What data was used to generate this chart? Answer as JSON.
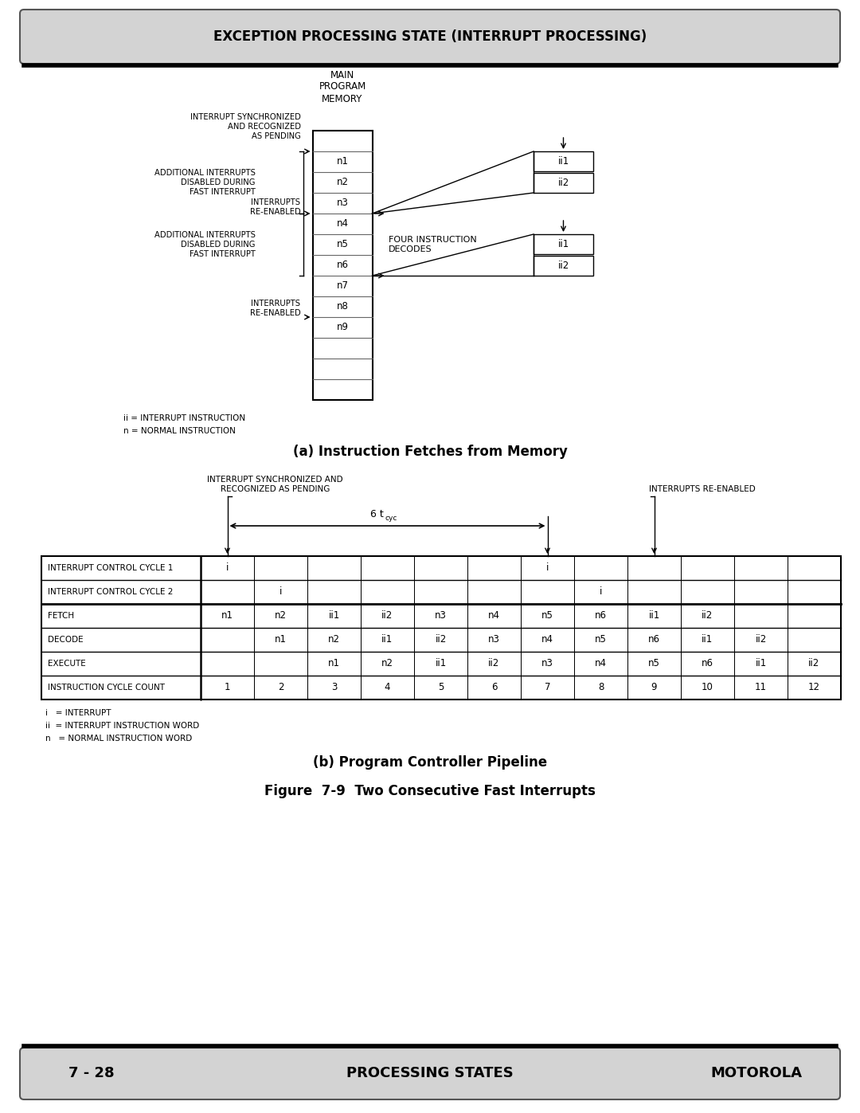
{
  "title_header": "EXCEPTION PROCESSING STATE (INTERRUPT PROCESSING)",
  "footer_left": "7 - 28",
  "footer_center": "PROCESSING STATES",
  "footer_right": "MOTOROLA",
  "section_a_title": "(a) Instruction Fetches from Memory",
  "section_b_title": "(b) Program Controller Pipeline",
  "figure_caption": "Figure  7-9  Two Consecutive Fast Interrupts",
  "memory_label": "MAIN\nPROGRAM\nMEMORY",
  "memory_rows": [
    "",
    "n1",
    "n2",
    "n3",
    "n4",
    "n5",
    "n6",
    "n7",
    "n8",
    "n9",
    "",
    "",
    ""
  ],
  "legend_a_line1": "ii = INTERRUPT INSTRUCTION",
  "legend_a_line2": "n = NORMAL INSTRUCTION",
  "four_instruction_label": "FOUR INSTRUCTION\nDECODES",
  "pipeline_rows": [
    {
      "label": "INTERRUPT CONTROL CYCLE 1",
      "cells": [
        "i",
        "",
        "",
        "",
        "",
        "",
        "i",
        "",
        "",
        "",
        "",
        ""
      ]
    },
    {
      "label": "INTERRUPT CONTROL CYCLE 2",
      "cells": [
        "",
        "i",
        "",
        "",
        "",
        "",
        "",
        "i",
        "",
        "",
        "",
        ""
      ]
    },
    {
      "label": "FETCH",
      "cells": [
        "n1",
        "n2",
        "ii1",
        "ii2",
        "n3",
        "n4",
        "n5",
        "n6",
        "ii1",
        "ii2",
        "",
        ""
      ]
    },
    {
      "label": "DECODE",
      "cells": [
        "",
        "n1",
        "n2",
        "ii1",
        "ii2",
        "n3",
        "n4",
        "n5",
        "n6",
        "ii1",
        "ii2",
        ""
      ]
    },
    {
      "label": "EXECUTE",
      "cells": [
        "",
        "",
        "n1",
        "n2",
        "ii1",
        "ii2",
        "n3",
        "n4",
        "n5",
        "n6",
        "ii1",
        "ii2"
      ]
    },
    {
      "label": "INSTRUCTION CYCLE COUNT",
      "cells": [
        "1",
        "2",
        "3",
        "4",
        "5",
        "6",
        "7",
        "8",
        "9",
        "10",
        "11",
        "12"
      ]
    }
  ],
  "legend_b": [
    "i   = INTERRUPT",
    "ii  = INTERRUPT INSTRUCTION WORD",
    "n   = NORMAL INSTRUCTION WORD"
  ],
  "bg_color": "#ffffff",
  "header_bg": "#d3d3d3",
  "footer_bg": "#d3d3d3"
}
